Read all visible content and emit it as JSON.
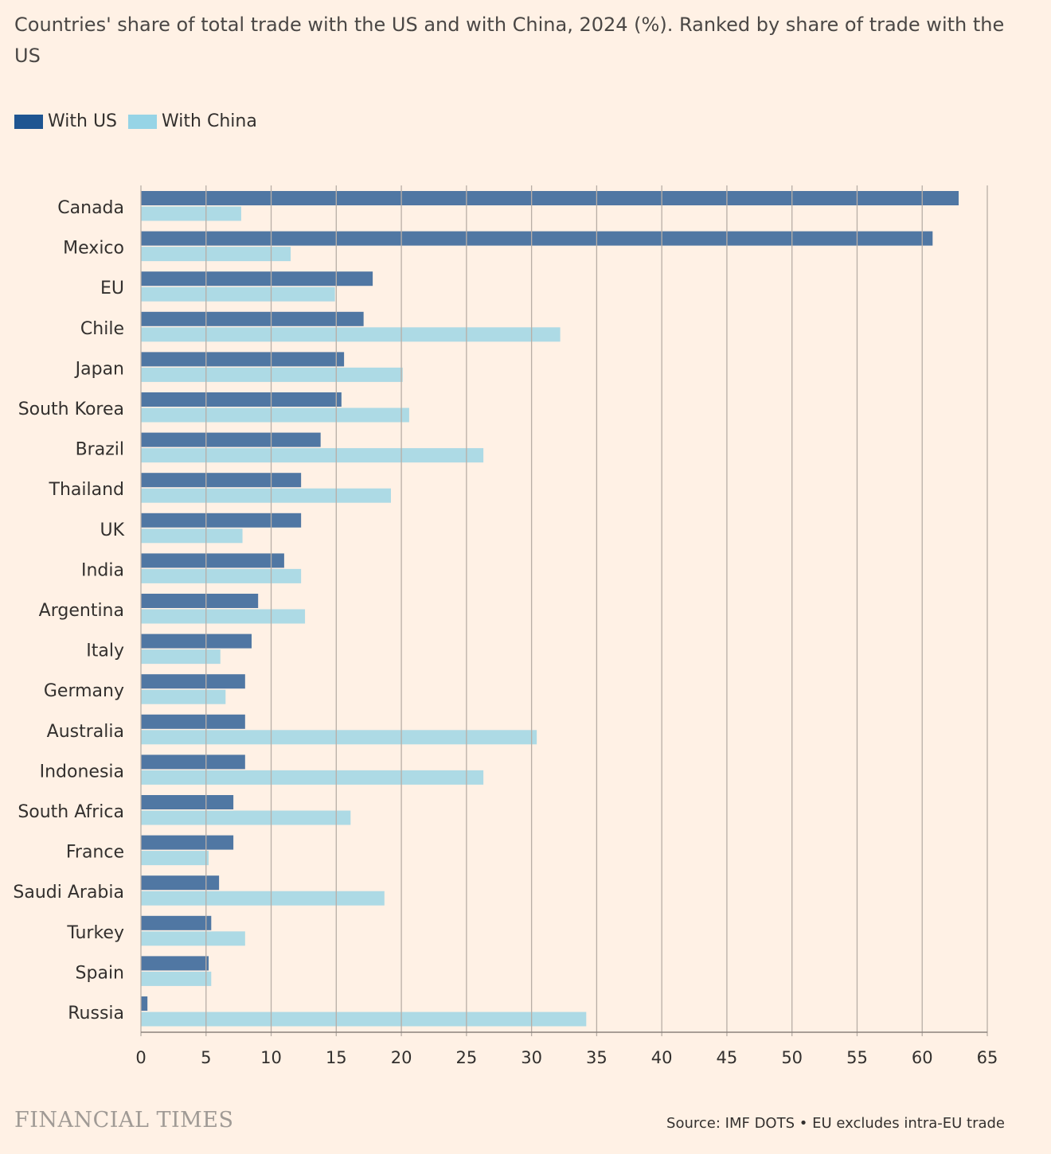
{
  "chart_data": {
    "type": "bar",
    "orientation": "horizontal",
    "title": "Countries' share of total trade with the US and with China, 2024 (%). Ranked by share of trade with the US",
    "categories": [
      "Canada",
      "Mexico",
      "EU",
      "Chile",
      "Japan",
      "South Korea",
      "Brazil",
      "Thailand",
      "UK",
      "India",
      "Argentina",
      "Italy",
      "Germany",
      "Australia",
      "Indonesia",
      "South Africa",
      "France",
      "Saudi Arabia",
      "Turkey",
      "Spain",
      "Russia"
    ],
    "series": [
      {
        "name": "With US",
        "color": "#1f5591",
        "values": [
          62.8,
          60.8,
          17.8,
          17.1,
          15.6,
          15.4,
          13.8,
          12.3,
          12.3,
          11.0,
          9.0,
          8.5,
          8.0,
          8.0,
          8.0,
          7.1,
          7.1,
          6.0,
          5.4,
          5.2,
          0.5
        ]
      },
      {
        "name": "With China",
        "color": "#96d4e6",
        "values": [
          7.7,
          11.5,
          14.9,
          32.2,
          20.1,
          20.6,
          26.3,
          19.2,
          7.8,
          12.3,
          12.6,
          6.1,
          6.5,
          30.4,
          26.3,
          16.1,
          5.2,
          18.7,
          8.0,
          5.4,
          34.2
        ]
      }
    ],
    "xlim": [
      0,
      65
    ],
    "xticks": [
      "0",
      "5",
      "10",
      "15",
      "20",
      "25",
      "30",
      "35",
      "40",
      "45",
      "50",
      "55",
      "60",
      "65"
    ],
    "grid": true,
    "legend_position": "top-left",
    "xlabel": "",
    "ylabel": ""
  },
  "brand": "FINANCIAL TIMES",
  "source": "Source: IMF DOTS • EU excludes intra-EU trade"
}
